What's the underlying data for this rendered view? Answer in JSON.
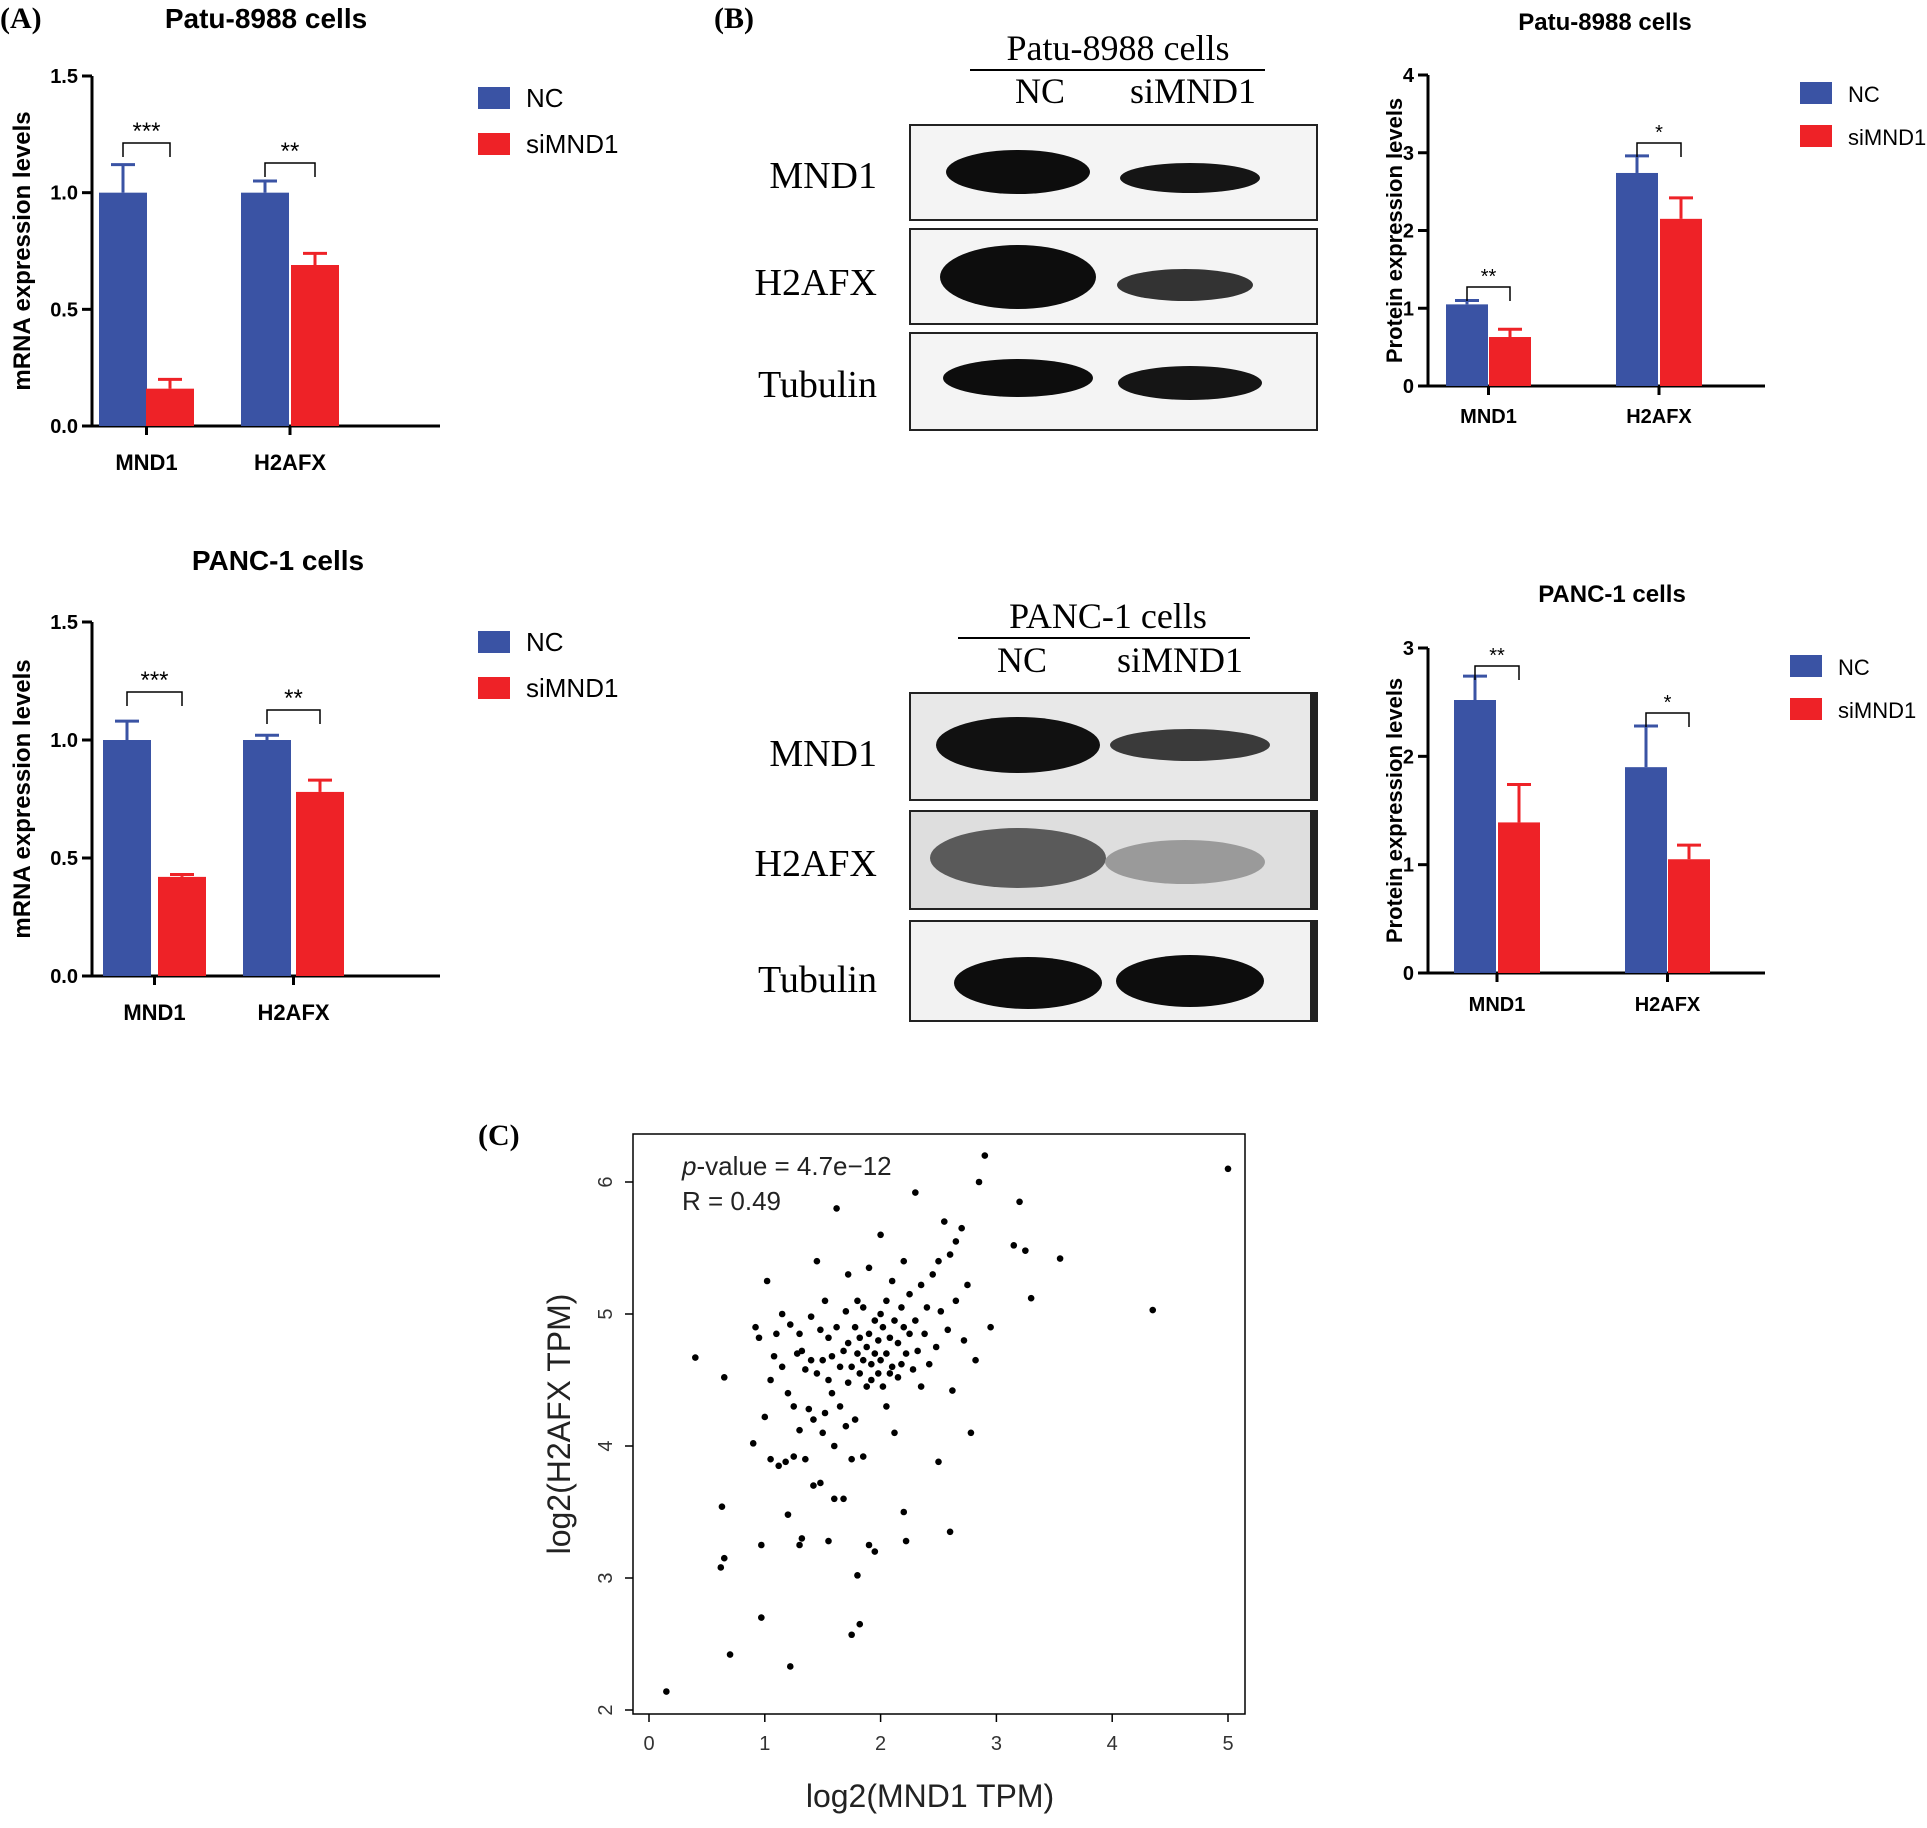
{
  "panels": {
    "a": "(A)",
    "b": "(B)",
    "c": "(C)"
  },
  "colors": {
    "nc": "#3a53a4",
    "si": "#ee2227",
    "axis": "#000000",
    "blot_bg": "#f4f4f4",
    "band": "#0d0d0d"
  },
  "blots": [
    {
      "title": "Patu-8988 cells",
      "lanes": [
        "NC",
        "siMND1"
      ],
      "rows": [
        "MND1",
        "H2AFX",
        "Tubulin"
      ]
    },
    {
      "title": "PANC-1 cells",
      "lanes": [
        "NC",
        "siMND1"
      ],
      "rows": [
        "MND1",
        "H2AFX",
        "Tubulin"
      ]
    }
  ],
  "chart_data": [
    {
      "type": "bar",
      "title": "Patu-8988 cells",
      "ylabel": "mRNA expression levels",
      "categories": [
        "MND1",
        "H2AFX"
      ],
      "ylim": [
        0,
        1.5
      ],
      "yticks": [
        "0.0",
        "0.5",
        "1.0",
        "1.5"
      ],
      "series": [
        {
          "name": "NC",
          "values": [
            1.0,
            1.0
          ],
          "errors": [
            0.12,
            0.05
          ]
        },
        {
          "name": "siMND1",
          "values": [
            0.16,
            0.69
          ],
          "errors": [
            0.04,
            0.05
          ]
        }
      ],
      "significance": [
        "***",
        "**"
      ]
    },
    {
      "type": "bar",
      "title": "PANC-1 cells",
      "ylabel": "mRNA expression levels",
      "categories": [
        "MND1",
        "H2AFX"
      ],
      "ylim": [
        0,
        1.5
      ],
      "yticks": [
        "0.0",
        "0.5",
        "1.0",
        "1.5"
      ],
      "series": [
        {
          "name": "NC",
          "values": [
            1.0,
            1.0
          ],
          "errors": [
            0.08,
            0.02
          ]
        },
        {
          "name": "siMND1",
          "values": [
            0.42,
            0.78
          ],
          "errors": [
            0.01,
            0.05
          ]
        }
      ],
      "significance": [
        "***",
        "**"
      ]
    },
    {
      "type": "bar",
      "title": "Patu-8988 cells",
      "ylabel": "Protein expression levels",
      "categories": [
        "MND1",
        "H2AFX"
      ],
      "ylim": [
        0,
        4
      ],
      "yticks": [
        "0",
        "1",
        "2",
        "3",
        "4"
      ],
      "series": [
        {
          "name": "NC",
          "values": [
            1.05,
            2.74
          ],
          "errors": [
            0.05,
            0.22
          ]
        },
        {
          "name": "siMND1",
          "values": [
            0.63,
            2.15
          ],
          "errors": [
            0.1,
            0.27
          ]
        }
      ],
      "significance": [
        "**",
        "*"
      ]
    },
    {
      "type": "bar",
      "title": "PANC-1 cells",
      "ylabel": "Protein expression levels",
      "categories": [
        "MND1",
        "H2AFX"
      ],
      "ylim": [
        0,
        3
      ],
      "yticks": [
        "0",
        "1",
        "2",
        "3"
      ],
      "series": [
        {
          "name": "NC",
          "values": [
            2.52,
            1.9
          ],
          "errors": [
            0.22,
            0.38
          ]
        },
        {
          "name": "siMND1",
          "values": [
            1.39,
            1.05
          ],
          "errors": [
            0.35,
            0.13
          ]
        }
      ],
      "significance": [
        "**",
        "*"
      ]
    },
    {
      "type": "scatter",
      "xlabel": "log2(MND1 TPM)",
      "ylabel": "log2(H2AFX TPM)",
      "xlim": [
        0,
        5
      ],
      "ylim": [
        2,
        6.2
      ],
      "xticks": [
        "0",
        "1",
        "2",
        "3",
        "4",
        "5"
      ],
      "yticks": [
        "2",
        "3",
        "4",
        "5",
        "6"
      ],
      "annotation": {
        "p_label": "p",
        "p_rest": "-value = 4.7e−12",
        "r": "R = 0.49"
      },
      "points": [
        [
          0.15,
          2.14
        ],
        [
          0.4,
          4.67
        ],
        [
          0.62,
          3.08
        ],
        [
          0.63,
          3.54
        ],
        [
          0.65,
          3.15
        ],
        [
          0.65,
          4.52
        ],
        [
          0.7,
          2.42
        ],
        [
          0.9,
          4.02
        ],
        [
          0.92,
          4.9
        ],
        [
          0.95,
          4.82
        ],
        [
          0.97,
          3.25
        ],
        [
          0.97,
          2.7
        ],
        [
          1.0,
          4.22
        ],
        [
          1.02,
          5.25
        ],
        [
          1.05,
          4.5
        ],
        [
          1.05,
          3.9
        ],
        [
          1.08,
          4.68
        ],
        [
          1.1,
          4.85
        ],
        [
          1.12,
          3.85
        ],
        [
          1.15,
          5.0
        ],
        [
          1.15,
          4.6
        ],
        [
          1.18,
          3.88
        ],
        [
          1.2,
          4.4
        ],
        [
          1.2,
          3.48
        ],
        [
          1.22,
          4.92
        ],
        [
          1.22,
          2.33
        ],
        [
          1.25,
          3.92
        ],
        [
          1.25,
          4.3
        ],
        [
          1.28,
          4.7
        ],
        [
          1.3,
          4.85
        ],
        [
          1.3,
          3.25
        ],
        [
          1.3,
          4.12
        ],
        [
          1.32,
          3.3
        ],
        [
          1.32,
          4.72
        ],
        [
          1.35,
          4.58
        ],
        [
          1.35,
          3.9
        ],
        [
          1.38,
          4.28
        ],
        [
          1.4,
          4.65
        ],
        [
          1.4,
          4.98
        ],
        [
          1.42,
          4.2
        ],
        [
          1.42,
          3.7
        ],
        [
          1.45,
          4.55
        ],
        [
          1.45,
          5.4
        ],
        [
          1.48,
          4.88
        ],
        [
          1.48,
          3.72
        ],
        [
          1.5,
          4.65
        ],
        [
          1.5,
          4.1
        ],
        [
          1.52,
          5.1
        ],
        [
          1.52,
          4.25
        ],
        [
          1.55,
          4.5
        ],
        [
          1.55,
          4.82
        ],
        [
          1.55,
          3.28
        ],
        [
          1.58,
          4.68
        ],
        [
          1.58,
          4.4
        ],
        [
          1.6,
          4.0
        ],
        [
          1.6,
          3.6
        ],
        [
          1.62,
          4.9
        ],
        [
          1.62,
          5.8
        ],
        [
          1.65,
          4.6
        ],
        [
          1.65,
          4.3
        ],
        [
          1.68,
          4.72
        ],
        [
          1.68,
          3.6
        ],
        [
          1.7,
          5.02
        ],
        [
          1.7,
          4.15
        ],
        [
          1.72,
          4.78
        ],
        [
          1.72,
          4.48
        ],
        [
          1.72,
          5.3
        ],
        [
          1.75,
          4.6
        ],
        [
          1.75,
          3.9
        ],
        [
          1.75,
          2.57
        ],
        [
          1.78,
          4.9
        ],
        [
          1.78,
          4.2
        ],
        [
          1.8,
          4.7
        ],
        [
          1.8,
          5.1
        ],
        [
          1.8,
          3.02
        ],
        [
          1.82,
          4.55
        ],
        [
          1.82,
          4.82
        ],
        [
          1.82,
          2.65
        ],
        [
          1.85,
          4.65
        ],
        [
          1.85,
          5.05
        ],
        [
          1.85,
          3.92
        ],
        [
          1.88,
          4.45
        ],
        [
          1.88,
          4.75
        ],
        [
          1.9,
          4.85
        ],
        [
          1.9,
          5.35
        ],
        [
          1.9,
          3.25
        ],
        [
          1.92,
          4.5
        ],
        [
          1.92,
          4.62
        ],
        [
          1.95,
          4.95
        ],
        [
          1.95,
          4.7
        ],
        [
          1.95,
          3.2
        ],
        [
          1.98,
          4.55
        ],
        [
          1.98,
          4.8
        ],
        [
          2.0,
          5.0
        ],
        [
          2.0,
          4.65
        ],
        [
          2.0,
          5.6
        ],
        [
          2.02,
          4.45
        ],
        [
          2.02,
          4.9
        ],
        [
          2.05,
          4.7
        ],
        [
          2.05,
          5.1
        ],
        [
          2.05,
          4.3
        ],
        [
          2.08,
          4.82
        ],
        [
          2.08,
          4.55
        ],
        [
          2.1,
          4.6
        ],
        [
          2.1,
          5.25
        ],
        [
          2.12,
          4.95
        ],
        [
          2.12,
          4.1
        ],
        [
          2.15,
          4.78
        ],
        [
          2.15,
          4.52
        ],
        [
          2.18,
          5.05
        ],
        [
          2.18,
          4.62
        ],
        [
          2.2,
          4.9
        ],
        [
          2.2,
          5.4
        ],
        [
          2.2,
          3.5
        ],
        [
          2.22,
          4.7
        ],
        [
          2.22,
          3.28
        ],
        [
          2.25,
          4.85
        ],
        [
          2.25,
          5.15
        ],
        [
          2.28,
          4.58
        ],
        [
          2.3,
          4.95
        ],
        [
          2.3,
          5.92
        ],
        [
          2.32,
          4.72
        ],
        [
          2.35,
          5.22
        ],
        [
          2.35,
          4.45
        ],
        [
          2.38,
          4.85
        ],
        [
          2.4,
          5.05
        ],
        [
          2.42,
          4.62
        ],
        [
          2.45,
          5.3
        ],
        [
          2.48,
          4.75
        ],
        [
          2.5,
          5.4
        ],
        [
          2.5,
          3.88
        ],
        [
          2.52,
          5.02
        ],
        [
          2.55,
          5.7
        ],
        [
          2.58,
          4.88
        ],
        [
          2.6,
          5.45
        ],
        [
          2.6,
          3.35
        ],
        [
          2.62,
          4.42
        ],
        [
          2.65,
          5.55
        ],
        [
          2.65,
          5.1
        ],
        [
          2.7,
          5.65
        ],
        [
          2.72,
          4.8
        ],
        [
          2.75,
          5.22
        ],
        [
          2.78,
          4.1
        ],
        [
          2.82,
          4.65
        ],
        [
          2.85,
          6.0
        ],
        [
          2.9,
          6.2
        ],
        [
          2.95,
          4.9
        ],
        [
          3.15,
          5.52
        ],
        [
          3.2,
          5.85
        ],
        [
          3.25,
          5.48
        ],
        [
          3.3,
          5.12
        ],
        [
          3.55,
          5.42
        ],
        [
          4.35,
          5.03
        ],
        [
          5.0,
          6.1
        ]
      ]
    }
  ]
}
